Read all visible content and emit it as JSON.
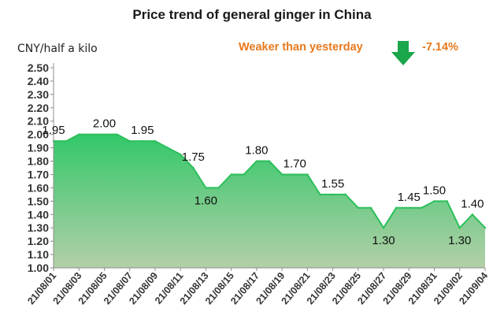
{
  "title": "Price trend of general ginger in China",
  "unit_label": "CNY/half a kilo",
  "change": {
    "label": "Weaker than yesterday",
    "value": "-7.14%",
    "direction_icon": "down-arrow-icon",
    "color": "#e8791c",
    "arrow_color": "#1aa64a"
  },
  "chart_data": {
    "type": "area",
    "x": [
      "21/08/01",
      "21/08/02",
      "21/08/03",
      "21/08/04",
      "21/08/05",
      "21/08/06",
      "21/08/07",
      "21/08/08",
      "21/08/09",
      "21/08/10",
      "21/08/11",
      "21/08/12",
      "21/08/13",
      "21/08/14",
      "21/08/15",
      "21/08/16",
      "21/08/17",
      "21/08/18",
      "21/08/19",
      "21/08/20",
      "21/08/21",
      "21/08/22",
      "21/08/23",
      "21/08/24",
      "21/08/25",
      "21/08/26",
      "21/08/27",
      "21/08/28",
      "21/08/29",
      "21/08/30",
      "21/08/31",
      "21/09/01",
      "21/09/02",
      "21/09/03",
      "21/09/04"
    ],
    "series": [
      {
        "values": [
          1.95,
          1.95,
          2.0,
          2.0,
          2.0,
          2.0,
          1.95,
          1.95,
          1.95,
          1.9,
          1.85,
          1.75,
          1.6,
          1.6,
          1.7,
          1.7,
          1.8,
          1.8,
          1.7,
          1.7,
          1.7,
          1.55,
          1.55,
          1.55,
          1.45,
          1.45,
          1.3,
          1.45,
          1.45,
          1.45,
          1.5,
          1.5,
          1.3,
          1.4,
          1.3
        ]
      }
    ],
    "xtick_labels": [
      "21/08/01",
      "21/08/03",
      "21/08/05",
      "21/08/07",
      "21/08/09",
      "21/08/11",
      "21/08/13",
      "21/08/15",
      "21/08/17",
      "21/08/19",
      "21/08/21",
      "21/08/23",
      "21/08/25",
      "21/08/27",
      "21/08/29",
      "21/08/31",
      "21/09/02",
      "21/09/04"
    ],
    "ytick_labels": [
      "1.00",
      "1.10",
      "1.20",
      "1.30",
      "1.40",
      "1.50",
      "1.60",
      "1.70",
      "1.80",
      "1.90",
      "2.00",
      "2.10",
      "2.20",
      "2.30",
      "2.40",
      "2.50"
    ],
    "ylim": [
      1.0,
      2.5
    ],
    "data_labels": [
      {
        "x": "21/08/01",
        "text": "1.95",
        "pos": "above"
      },
      {
        "x": "21/08/05",
        "text": "2.00",
        "pos": "above"
      },
      {
        "x": "21/08/08",
        "text": "1.95",
        "pos": "above"
      },
      {
        "x": "21/08/12",
        "text": "1.75",
        "pos": "above"
      },
      {
        "x": "21/08/13",
        "text": "1.60",
        "pos": "below"
      },
      {
        "x": "21/08/17",
        "text": "1.80",
        "pos": "above"
      },
      {
        "x": "21/08/20",
        "text": "1.70",
        "pos": "above"
      },
      {
        "x": "21/08/23",
        "text": "1.55",
        "pos": "above"
      },
      {
        "x": "21/08/27",
        "text": "1.30",
        "pos": "below"
      },
      {
        "x": "21/08/29",
        "text": "1.45",
        "pos": "above"
      },
      {
        "x": "21/08/31",
        "text": "1.50",
        "pos": "above"
      },
      {
        "x": "21/09/02",
        "text": "1.30",
        "pos": "below"
      },
      {
        "x": "21/09/03",
        "text": "1.40",
        "pos": "above"
      }
    ],
    "grid": false,
    "colors": {
      "line": "#2bbf5a",
      "fill_top": "#33c86a",
      "fill_bottom": "#b3cfa8"
    }
  }
}
